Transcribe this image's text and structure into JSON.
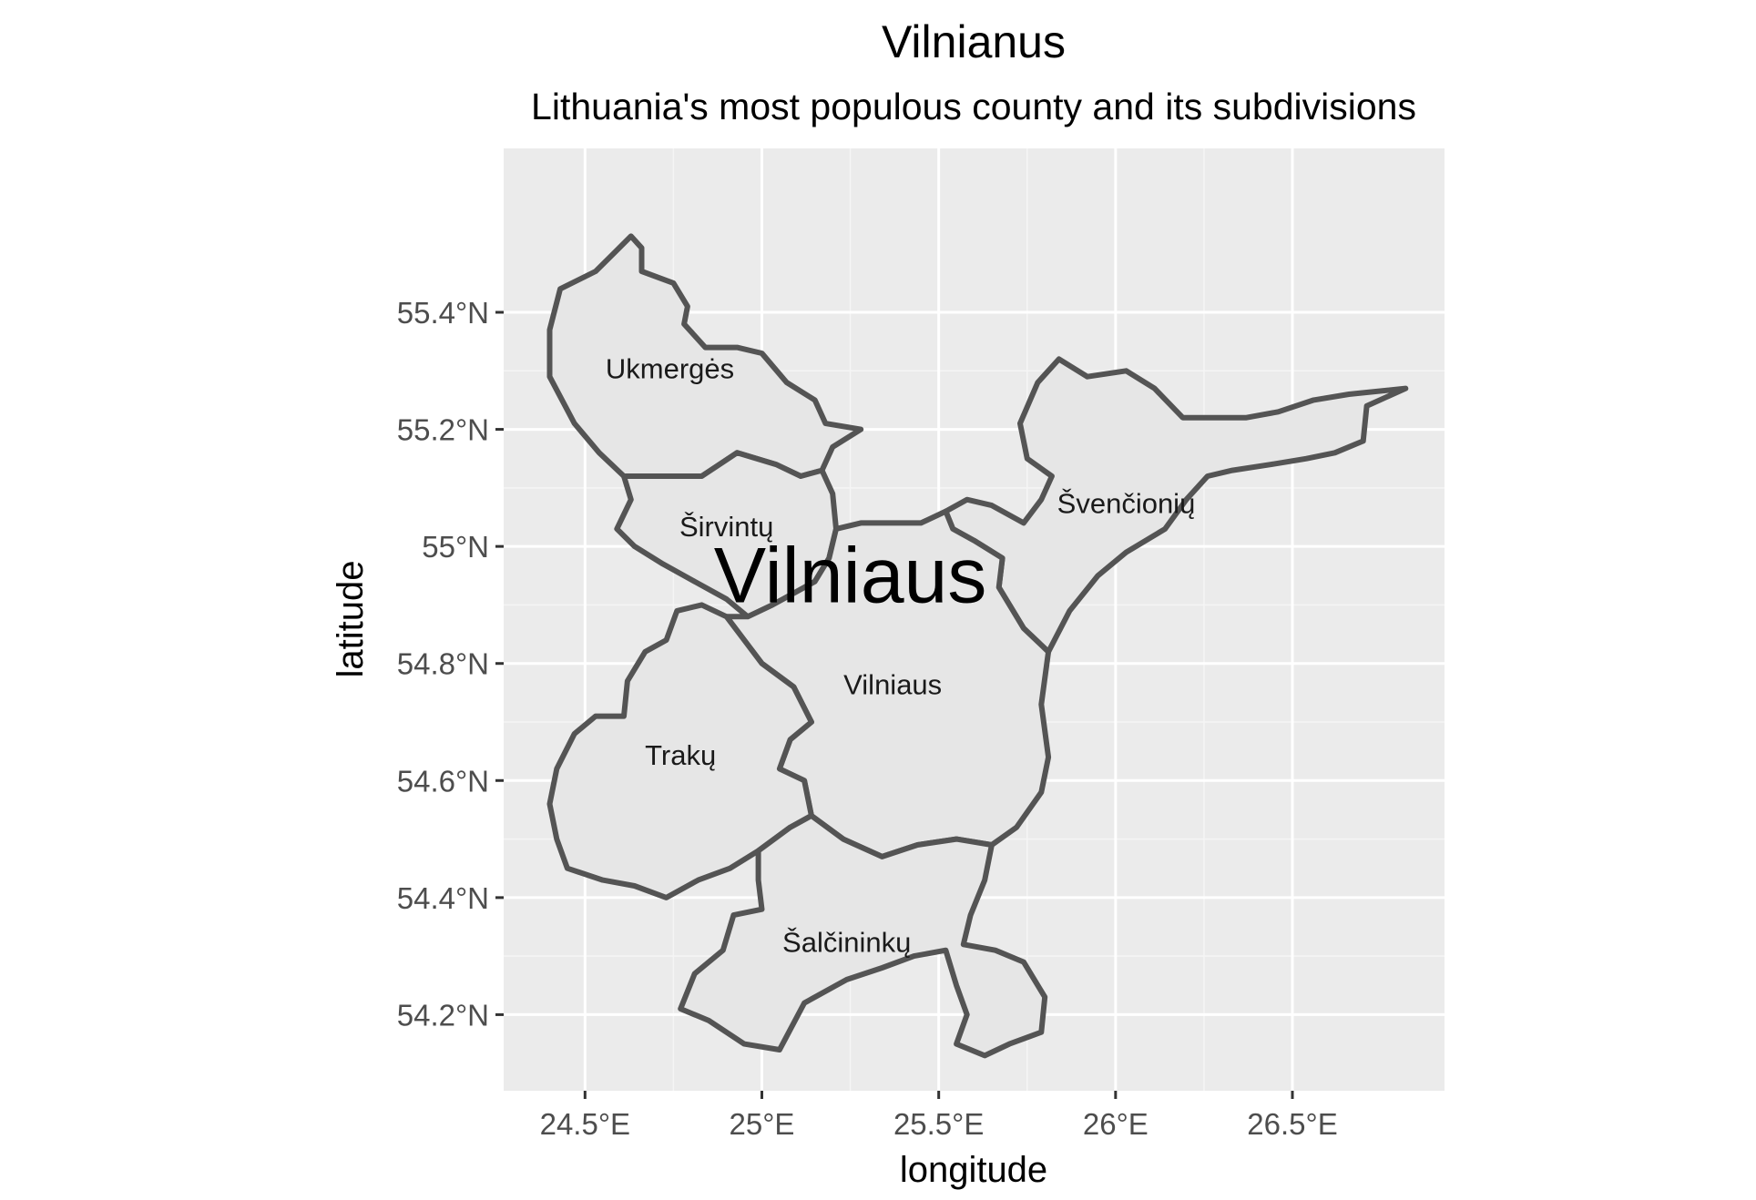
{
  "title": "Vilnianus",
  "subtitle": "Lithuania's most populous county and its subdivisions",
  "chart_data": {
    "type": "map",
    "title": "Vilnianus",
    "subtitle": "Lithuania's most populous county and its subdivisions",
    "xlabel": "longitude",
    "ylabel": "latitude",
    "xlim": [
      24.27,
      26.93
    ],
    "ylim": [
      54.07,
      55.68
    ],
    "x_ticks": [
      24.5,
      25.0,
      25.5,
      26.0,
      26.5
    ],
    "x_tick_labels": [
      "24.5°E",
      "25°E",
      "25.5°E",
      "26°E",
      "26.5°E"
    ],
    "y_ticks": [
      54.2,
      54.4,
      54.6,
      54.8,
      55.0,
      55.2,
      55.4
    ],
    "y_tick_labels": [
      "54.2°N",
      "54.4°N",
      "54.6°N",
      "54.8°N",
      "55°N",
      "55.2°N",
      "55.4°N"
    ],
    "grid": true,
    "colors": {
      "panel": "#ebebeb",
      "region_fill": "#e6e6e6",
      "region_border": "#545454"
    },
    "county_label": {
      "text": "Vilniaus",
      "lon": 25.25,
      "lat": 54.94
    },
    "regions": [
      {
        "name": "Ukmergės",
        "label": {
          "lon": 24.74,
          "lat": 55.3
        },
        "boundary": [
          [
            24.63,
            55.53
          ],
          [
            24.66,
            55.51
          ],
          [
            24.66,
            55.47
          ],
          [
            24.75,
            55.45
          ],
          [
            24.79,
            55.41
          ],
          [
            24.78,
            55.38
          ],
          [
            24.84,
            55.34
          ],
          [
            24.93,
            55.34
          ],
          [
            25.0,
            55.33
          ],
          [
            25.07,
            55.28
          ],
          [
            25.15,
            55.25
          ],
          [
            25.18,
            55.21
          ],
          [
            25.28,
            55.2
          ],
          [
            25.2,
            55.17
          ],
          [
            25.17,
            55.13
          ],
          [
            25.11,
            55.12
          ],
          [
            25.04,
            55.14
          ],
          [
            24.93,
            55.16
          ],
          [
            24.83,
            55.12
          ],
          [
            24.72,
            55.12
          ],
          [
            24.61,
            55.12
          ],
          [
            24.54,
            55.16
          ],
          [
            24.47,
            55.21
          ],
          [
            24.4,
            55.29
          ],
          [
            24.4,
            55.37
          ],
          [
            24.43,
            55.44
          ],
          [
            24.53,
            55.47
          ],
          [
            24.58,
            55.5
          ]
        ]
      },
      {
        "name": "Širvintų",
        "label": {
          "lon": 24.9,
          "lat": 55.03
        },
        "boundary": [
          [
            24.61,
            55.12
          ],
          [
            24.72,
            55.12
          ],
          [
            24.83,
            55.12
          ],
          [
            24.93,
            55.16
          ],
          [
            25.04,
            55.14
          ],
          [
            25.11,
            55.12
          ],
          [
            25.17,
            55.13
          ],
          [
            25.2,
            55.09
          ],
          [
            25.21,
            55.03
          ],
          [
            25.19,
            54.98
          ],
          [
            25.15,
            54.94
          ],
          [
            25.09,
            54.92
          ],
          [
            25.03,
            54.9
          ],
          [
            24.96,
            54.88
          ],
          [
            24.9,
            54.91
          ],
          [
            24.81,
            54.94
          ],
          [
            24.72,
            54.97
          ],
          [
            24.64,
            55.0
          ],
          [
            24.59,
            55.03
          ],
          [
            24.63,
            55.08
          ]
        ]
      },
      {
        "name": "Švenčionių",
        "label": {
          "lon": 26.03,
          "lat": 55.07
        },
        "boundary": [
          [
            25.52,
            55.06
          ],
          [
            25.58,
            55.08
          ],
          [
            25.65,
            55.07
          ],
          [
            25.74,
            55.04
          ],
          [
            25.79,
            55.08
          ],
          [
            25.82,
            55.12
          ],
          [
            25.75,
            55.15
          ],
          [
            25.73,
            55.21
          ],
          [
            25.78,
            55.28
          ],
          [
            25.84,
            55.32
          ],
          [
            25.92,
            55.29
          ],
          [
            26.03,
            55.3
          ],
          [
            26.11,
            55.27
          ],
          [
            26.19,
            55.22
          ],
          [
            26.29,
            55.22
          ],
          [
            26.37,
            55.22
          ],
          [
            26.46,
            55.23
          ],
          [
            26.56,
            55.25
          ],
          [
            26.66,
            55.26
          ],
          [
            26.82,
            55.27
          ],
          [
            26.71,
            55.24
          ],
          [
            26.7,
            55.18
          ],
          [
            26.62,
            55.16
          ],
          [
            26.54,
            55.15
          ],
          [
            26.44,
            55.14
          ],
          [
            26.33,
            55.13
          ],
          [
            26.26,
            55.12
          ],
          [
            26.2,
            55.08
          ],
          [
            26.14,
            55.03
          ],
          [
            26.03,
            54.99
          ],
          [
            25.95,
            54.95
          ],
          [
            25.87,
            54.89
          ],
          [
            25.81,
            54.82
          ],
          [
            25.74,
            54.86
          ],
          [
            25.67,
            54.93
          ],
          [
            25.68,
            54.98
          ],
          [
            25.6,
            55.01
          ],
          [
            25.54,
            55.03
          ]
        ]
      },
      {
        "name": "Vilniaus",
        "label": {
          "lon": 25.37,
          "lat": 54.76
        },
        "boundary": [
          [
            25.19,
            54.98
          ],
          [
            25.21,
            55.03
          ],
          [
            25.28,
            55.04
          ],
          [
            25.37,
            55.04
          ],
          [
            25.45,
            55.04
          ],
          [
            25.52,
            55.06
          ],
          [
            25.54,
            55.03
          ],
          [
            25.6,
            55.01
          ],
          [
            25.68,
            54.98
          ],
          [
            25.67,
            54.93
          ],
          [
            25.74,
            54.86
          ],
          [
            25.81,
            54.82
          ],
          [
            25.79,
            54.73
          ],
          [
            25.81,
            54.64
          ],
          [
            25.79,
            54.58
          ],
          [
            25.72,
            54.52
          ],
          [
            25.65,
            54.49
          ],
          [
            25.55,
            54.5
          ],
          [
            25.44,
            54.49
          ],
          [
            25.34,
            54.47
          ],
          [
            25.23,
            54.5
          ],
          [
            25.14,
            54.54
          ],
          [
            25.12,
            54.6
          ],
          [
            25.05,
            54.62
          ],
          [
            25.08,
            54.67
          ],
          [
            25.14,
            54.7
          ],
          [
            25.09,
            54.76
          ],
          [
            25.0,
            54.8
          ],
          [
            24.95,
            54.84
          ],
          [
            24.9,
            54.88
          ],
          [
            24.96,
            54.88
          ],
          [
            25.03,
            54.9
          ],
          [
            25.09,
            54.92
          ],
          [
            25.15,
            54.94
          ]
        ]
      },
      {
        "name": "Trakų",
        "label": {
          "lon": 24.77,
          "lat": 54.64
        },
        "boundary": [
          [
            24.9,
            54.88
          ],
          [
            24.83,
            54.9
          ],
          [
            24.76,
            54.89
          ],
          [
            24.73,
            54.84
          ],
          [
            24.67,
            54.82
          ],
          [
            24.62,
            54.77
          ],
          [
            24.61,
            54.71
          ],
          [
            24.53,
            54.71
          ],
          [
            24.47,
            54.68
          ],
          [
            24.42,
            54.62
          ],
          [
            24.4,
            54.56
          ],
          [
            24.42,
            54.5
          ],
          [
            24.45,
            54.45
          ],
          [
            24.55,
            54.43
          ],
          [
            24.64,
            54.42
          ],
          [
            24.73,
            54.4
          ],
          [
            24.82,
            54.43
          ],
          [
            24.91,
            54.45
          ],
          [
            24.99,
            54.48
          ],
          [
            25.08,
            54.52
          ],
          [
            25.14,
            54.54
          ],
          [
            25.12,
            54.6
          ],
          [
            25.05,
            54.62
          ],
          [
            25.08,
            54.67
          ],
          [
            25.14,
            54.7
          ],
          [
            25.09,
            54.76
          ],
          [
            25.0,
            54.8
          ],
          [
            24.95,
            54.84
          ]
        ]
      },
      {
        "name": "Šalčininkų",
        "label": {
          "lon": 25.24,
          "lat": 54.32
        },
        "boundary": [
          [
            24.99,
            54.48
          ],
          [
            25.08,
            54.52
          ],
          [
            25.14,
            54.54
          ],
          [
            25.23,
            54.5
          ],
          [
            25.34,
            54.47
          ],
          [
            25.44,
            54.49
          ],
          [
            25.55,
            54.5
          ],
          [
            25.65,
            54.49
          ],
          [
            25.63,
            54.43
          ],
          [
            25.59,
            54.37
          ],
          [
            25.57,
            54.32
          ],
          [
            25.66,
            54.31
          ],
          [
            25.74,
            54.29
          ],
          [
            25.8,
            54.23
          ],
          [
            25.79,
            54.17
          ],
          [
            25.7,
            54.15
          ],
          [
            25.63,
            54.13
          ],
          [
            25.55,
            54.15
          ],
          [
            25.58,
            54.2
          ],
          [
            25.55,
            54.25
          ],
          [
            25.52,
            54.31
          ],
          [
            25.43,
            54.3
          ],
          [
            25.34,
            54.28
          ],
          [
            25.24,
            54.26
          ],
          [
            25.12,
            54.22
          ],
          [
            25.05,
            54.14
          ],
          [
            24.95,
            54.15
          ],
          [
            24.85,
            54.19
          ],
          [
            24.77,
            54.21
          ],
          [
            24.81,
            54.27
          ],
          [
            24.89,
            54.31
          ],
          [
            24.92,
            54.37
          ],
          [
            25.0,
            54.38
          ],
          [
            24.99,
            54.43
          ]
        ]
      }
    ]
  }
}
